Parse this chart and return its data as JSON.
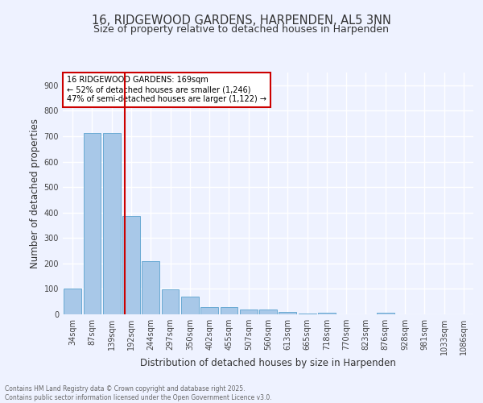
{
  "title": "16, RIDGEWOOD GARDENS, HARPENDEN, AL5 3NN",
  "subtitle": "Size of property relative to detached houses in Harpenden",
  "xlabel": "Distribution of detached houses by size in Harpenden",
  "ylabel": "Number of detached properties",
  "categories": [
    "34sqm",
    "87sqm",
    "139sqm",
    "192sqm",
    "244sqm",
    "297sqm",
    "350sqm",
    "402sqm",
    "455sqm",
    "507sqm",
    "560sqm",
    "613sqm",
    "665sqm",
    "718sqm",
    "770sqm",
    "823sqm",
    "876sqm",
    "928sqm",
    "981sqm",
    "1033sqm",
    "1086sqm"
  ],
  "values": [
    100,
    712,
    712,
    385,
    208,
    97,
    70,
    28,
    30,
    18,
    20,
    8,
    3,
    5,
    0,
    0,
    7,
    0,
    0,
    0,
    0
  ],
  "bar_color": "#a8c8e8",
  "bar_edge_color": "#6aaad4",
  "vline_color": "#cc0000",
  "annotation_box_text": "16 RIDGEWOOD GARDENS: 169sqm\n← 52% of detached houses are smaller (1,246)\n47% of semi-detached houses are larger (1,122) →",
  "annotation_box_color": "#cc0000",
  "annotation_box_bg": "#ffffff",
  "ylim": [
    0,
    950
  ],
  "yticks": [
    0,
    100,
    200,
    300,
    400,
    500,
    600,
    700,
    800,
    900
  ],
  "background_color": "#eef2ff",
  "grid_color": "#ffffff",
  "footer_text": "Contains HM Land Registry data © Crown copyright and database right 2025.\nContains public sector information licensed under the Open Government Licence v3.0.",
  "title_fontsize": 10.5,
  "subtitle_fontsize": 9,
  "axis_fontsize": 8.5,
  "tick_fontsize": 7,
  "footer_fontsize": 5.5
}
